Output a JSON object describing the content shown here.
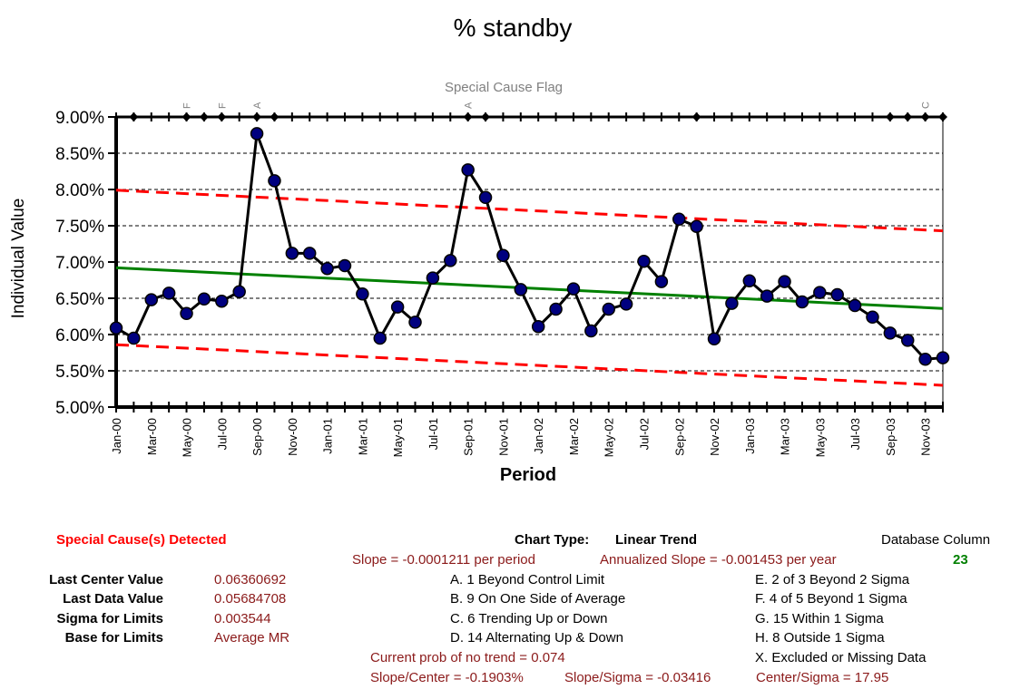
{
  "chart_data": {
    "type": "line",
    "title": "% standby",
    "subtitle": "Special Cause Flag",
    "xlabel": "Period",
    "ylabel": "Individual Value",
    "ylim": [
      0.05,
      0.09
    ],
    "y_ticks": [
      0.05,
      0.055,
      0.06,
      0.065,
      0.07,
      0.075,
      0.08,
      0.085,
      0.09
    ],
    "y_tick_labels": [
      "5.00%",
      "5.50%",
      "6.00%",
      "6.50%",
      "7.00%",
      "7.50%",
      "8.00%",
      "8.50%",
      "9.00%"
    ],
    "x_tick_labels": [
      "Jan-00",
      "Mar-00",
      "May-00",
      "Jul-00",
      "Sep-00",
      "Nov-00",
      "Jan-01",
      "Mar-01",
      "May-01",
      "Jul-01",
      "Sep-01",
      "Nov-01",
      "Jan-02",
      "Mar-02",
      "May-02",
      "Jul-02",
      "Sep-02",
      "Nov-02",
      "Jan-03",
      "Mar-03",
      "May-03",
      "Jul-03",
      "Sep-03",
      "Nov-03"
    ],
    "n_periods": 48,
    "series": [
      {
        "kind": "data",
        "values": [
          0.0609,
          0.0595,
          0.0648,
          0.0657,
          0.0629,
          0.0649,
          0.0646,
          0.0659,
          0.0877,
          0.0812,
          0.0712,
          0.0712,
          0.0691,
          0.0695,
          0.0656,
          0.0595,
          0.0638,
          0.0617,
          0.0678,
          0.0702,
          0.0827,
          0.0789,
          0.0709,
          0.0662,
          0.0611,
          0.0635,
          0.0663,
          0.0605,
          0.0635,
          0.0642,
          0.0701,
          0.0673,
          0.0759,
          0.0749,
          0.0594,
          0.0643,
          0.0674,
          0.0653,
          0.0673,
          0.0645,
          0.0658,
          0.0655,
          0.064,
          0.0624,
          0.0602,
          0.0592,
          0.0566,
          0.0568
        ]
      },
      {
        "kind": "center",
        "start": 0.0692,
        "end": 0.0636
      },
      {
        "kind": "ucl",
        "start": 0.0799,
        "end": 0.0743
      },
      {
        "kind": "lcl",
        "start": 0.0586,
        "end": 0.053
      }
    ],
    "flags": [
      {
        "period": 5,
        "label": "F"
      },
      {
        "period": 7,
        "label": "F"
      },
      {
        "period": 9,
        "label": "A"
      },
      {
        "period": 21,
        "label": "A"
      },
      {
        "period": 47,
        "label": "C"
      }
    ],
    "flag_markers": [
      2,
      5,
      6,
      7,
      9,
      10,
      21,
      22,
      34,
      45,
      46,
      47,
      48
    ],
    "colors": {
      "data": "#000000",
      "marker_fill": "#00007f",
      "center": "#008000",
      "limits": "#ff0000",
      "flag_text": "#808080"
    },
    "grid": true
  },
  "summary": {
    "special_cause": "Special Cause(s) Detected",
    "labels": [
      "Last Center Value",
      "Last Data Value",
      "Sigma for Limits",
      "Base for Limits"
    ],
    "values": [
      "0.06360692",
      "0.05684708",
      "0.003544",
      "Average MR"
    ],
    "chart_type_label": "Chart Type:",
    "chart_type_value": "Linear Trend",
    "slope": "Slope = -0.0001211 per period",
    "annualized_slope": "Annualized Slope = -0.001453 per year",
    "db_column_label": "Database Column",
    "db_column_value": "23",
    "rules_left": [
      "A.  1 Beyond Control Limit",
      "B.  9 On One Side of Average",
      "C.  6 Trending Up or Down",
      "D.  14 Alternating  Up & Down"
    ],
    "rules_right": [
      "E.   2 of 3 Beyond 2 Sigma",
      "F.   4 of 5 Beyond 1 Sigma",
      "G.   15 Within 1 Sigma",
      "H.   8 Outside 1 Sigma",
      "X.   Excluded or Missing Data"
    ],
    "prob_trend": "Current prob of no trend = 0.074",
    "slope_center": "Slope/Center = -0.1903%",
    "slope_sigma": "Slope/Sigma = -0.03416",
    "center_sigma": "Center/Sigma = 17.95"
  }
}
